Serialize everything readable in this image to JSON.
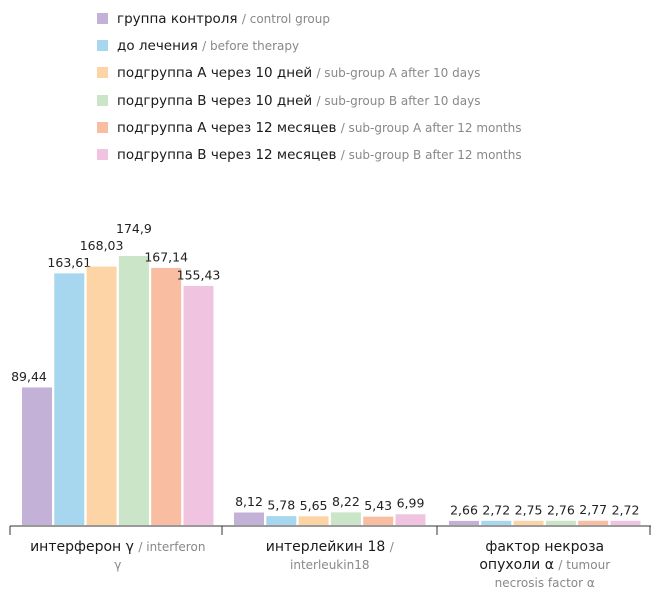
{
  "chart_data": {
    "type": "bar",
    "categories": [
      "интерферон γ",
      "интерлейкин 18",
      "фактор некроза опухоли α"
    ],
    "categories_en": [
      "/ interferon γ",
      "/ interleukin18",
      "/ tumour necrosis factor α"
    ],
    "series": [
      {
        "name": "группа контроля",
        "name_en": "/ control group",
        "color": "#c3b1d8",
        "values": [
          89.44,
          8.12,
          2.66
        ],
        "value_labels": [
          "89,44",
          "8,12",
          "2,66"
        ]
      },
      {
        "name": "до лечения",
        "name_en": "/ before therapy",
        "color": "#a7d6ef",
        "values": [
          163.61,
          5.78,
          2.72
        ],
        "value_labels": [
          "163,61",
          "5,78",
          "2,72"
        ]
      },
      {
        "name": "подгруппа А через 10 дней",
        "name_en": "/ sub-group A after 10 days",
        "color": "#fcd4a6",
        "values": [
          168.03,
          5.65,
          2.75
        ],
        "value_labels": [
          "168,03",
          "5,65",
          "2,75"
        ]
      },
      {
        "name": "подгруппа В через 10 дней",
        "name_en": "/ sub-group B after 10 days",
        "color": "#cae5c7",
        "values": [
          174.9,
          8.22,
          2.76
        ],
        "value_labels": [
          "174,9",
          "8,22",
          "2,76"
        ]
      },
      {
        "name": "подгруппа А через 12 месяцев",
        "name_en": "/ sub-group A after 12 months",
        "color": "#f9bea2",
        "values": [
          167.14,
          5.43,
          2.77
        ],
        "value_labels": [
          "167,14",
          "5,43",
          "2,77"
        ]
      },
      {
        "name": "подгруппа В через 12 месяцев",
        "name_en": "/ sub-group B after 12 months",
        "color": "#f0c3e0",
        "values": [
          155.43,
          6.99,
          2.72
        ],
        "value_labels": [
          "155,43",
          "6,99",
          "2,72"
        ]
      }
    ]
  }
}
